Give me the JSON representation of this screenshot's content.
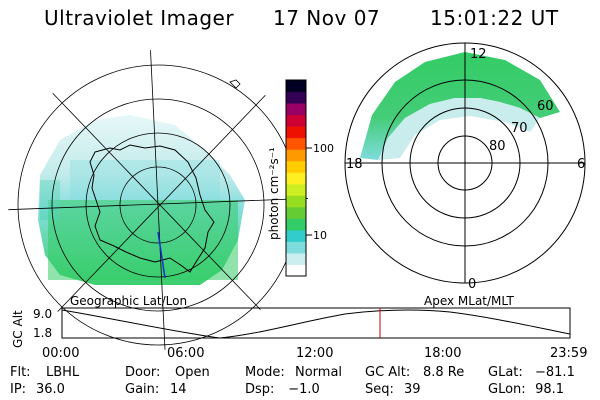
{
  "header": {
    "instrument": "Ultraviolet Imager",
    "date": "17 Nov 07",
    "time": "15:01:22 UT"
  },
  "left_panel": {
    "caption": "Geographic Lat/Lon"
  },
  "right_panel": {
    "caption": "Apex  MLat/MLT",
    "mlt_labels": [
      "12",
      "18",
      "6",
      "0"
    ],
    "mlat_labels": [
      "60",
      "70",
      "80"
    ]
  },
  "colorbar": {
    "label": "photon cm⁻²s⁻¹",
    "ticks": [
      "100",
      "10"
    ],
    "scale": "log",
    "colors": [
      "#ffffff",
      "#cceeee",
      "#7fdcdc",
      "#33cccc",
      "#33cc66",
      "#66cc33",
      "#99dd22",
      "#ccee22",
      "#ffee22",
      "#ffcc00",
      "#ff9900",
      "#ff5500",
      "#ee1100",
      "#cc0033",
      "#990066",
      "#330055",
      "#000022"
    ]
  },
  "altitude_plot": {
    "ylabel": "GC Alt",
    "yticks": [
      "9.0",
      "1.8"
    ],
    "xticks": [
      "00:00",
      "06:00",
      "12:00",
      "18:00",
      "23:59"
    ],
    "curve_color": "#000000",
    "marker_color": "#cc0000",
    "marker_time_fraction": 0.626
  },
  "footer": {
    "row1": [
      {
        "label": "Flt:",
        "value": "LBHL"
      },
      {
        "label": "Door:",
        "value": "Open"
      },
      {
        "label": "Mode:",
        "value": "Normal"
      },
      {
        "label": "GC Alt:",
        "value": "8.8 Re"
      },
      {
        "label": "GLat:",
        "value": "−81.1"
      }
    ],
    "row2": [
      {
        "label": "IP:",
        "value": "36.0"
      },
      {
        "label": "Gain:",
        "value": "14"
      },
      {
        "label": "Dsp:",
        "value": "  −1.0"
      },
      {
        "label": "Seq:",
        "value": "39"
      },
      {
        "label": "GLon:",
        "value": " 98.1"
      }
    ]
  }
}
